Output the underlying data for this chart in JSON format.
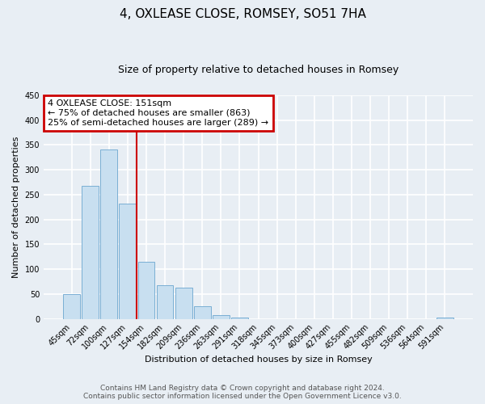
{
  "title": "4, OXLEASE CLOSE, ROMSEY, SO51 7HA",
  "subtitle": "Size of property relative to detached houses in Romsey",
  "xlabel": "Distribution of detached houses by size in Romsey",
  "ylabel": "Number of detached properties",
  "bar_labels": [
    "45sqm",
    "72sqm",
    "100sqm",
    "127sqm",
    "154sqm",
    "182sqm",
    "209sqm",
    "236sqm",
    "263sqm",
    "291sqm",
    "318sqm",
    "345sqm",
    "373sqm",
    "400sqm",
    "427sqm",
    "455sqm",
    "482sqm",
    "509sqm",
    "536sqm",
    "564sqm",
    "591sqm"
  ],
  "bar_values": [
    50,
    267,
    340,
    232,
    115,
    68,
    63,
    25,
    7,
    2,
    0,
    0,
    0,
    0,
    0,
    0,
    0,
    0,
    0,
    0,
    2
  ],
  "bar_color": "#c8dff0",
  "bar_edge_color": "#7aafd4",
  "vline_color": "#cc0000",
  "annotation_box_text": "4 OXLEASE CLOSE: 151sqm\n← 75% of detached houses are smaller (863)\n25% of semi-detached houses are larger (289) →",
  "annotation_box_color": "#cc0000",
  "ylim": [
    0,
    450
  ],
  "yticks": [
    0,
    50,
    100,
    150,
    200,
    250,
    300,
    350,
    400,
    450
  ],
  "footer_line1": "Contains HM Land Registry data © Crown copyright and database right 2024.",
  "footer_line2": "Contains public sector information licensed under the Open Government Licence v3.0.",
  "bg_color": "#e8eef4",
  "grid_color": "#ffffff",
  "title_fontsize": 11,
  "subtitle_fontsize": 9,
  "axis_label_fontsize": 8,
  "tick_fontsize": 7,
  "footer_fontsize": 6.5,
  "ann_fontsize": 8
}
